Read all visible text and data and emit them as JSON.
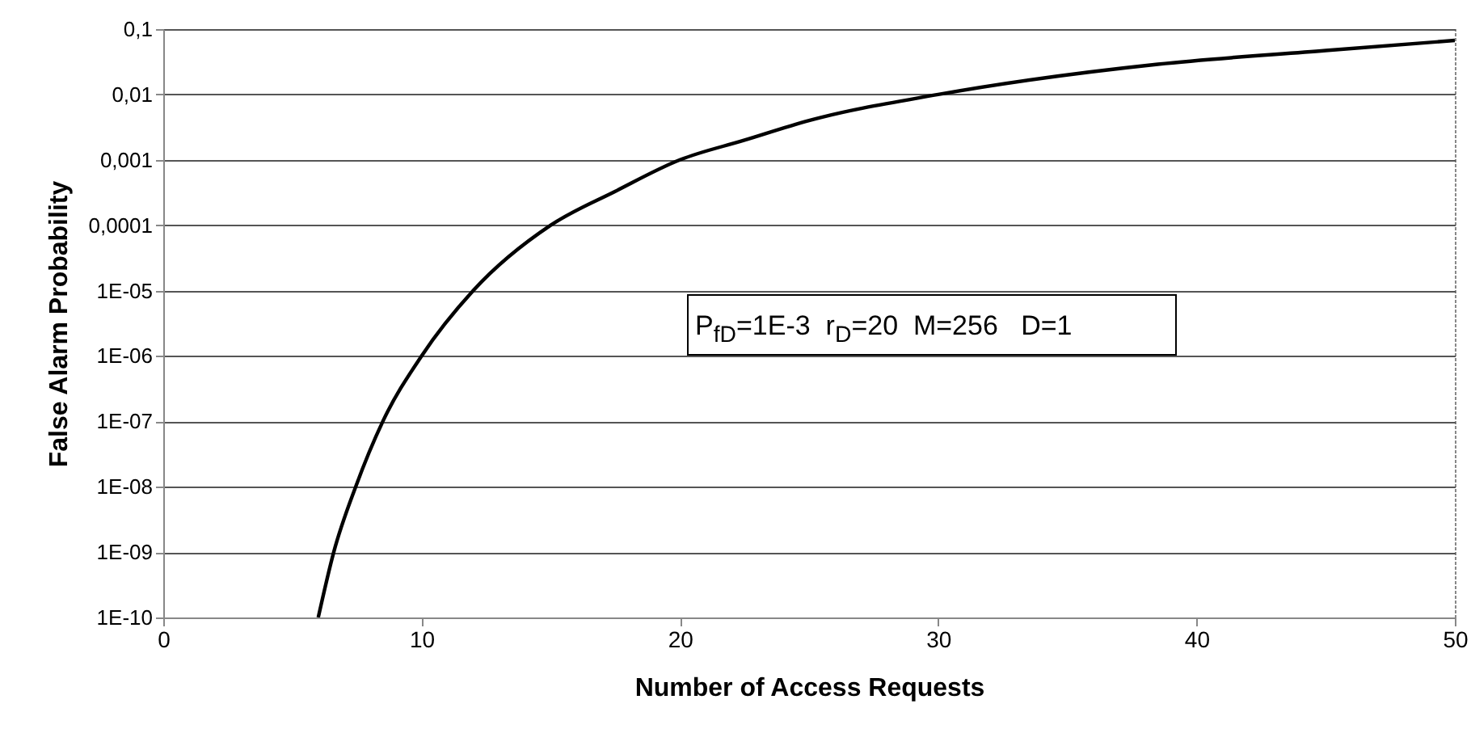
{
  "chart_data": {
    "type": "line",
    "xlabel": "Number of Access Requests",
    "ylabel": "False Alarm Probability",
    "x": [
      6,
      6.6,
      7.45,
      8.5,
      10,
      12,
      15,
      17.5,
      20,
      22.5,
      25,
      30,
      38.5,
      45,
      50
    ],
    "series": [
      {
        "color": "#000000",
        "values": [
          1e-10,
          1e-09,
          1e-08,
          1e-07,
          1e-06,
          1e-05,
          0.0001,
          0.00033,
          0.001,
          0.002,
          0.004,
          0.01,
          0.029,
          0.047,
          0.067
        ]
      }
    ],
    "xlim": [
      0,
      50
    ],
    "xticks": [
      0,
      10,
      20,
      30,
      40,
      50
    ],
    "ylim": [
      1e-10,
      0.1
    ],
    "log": true,
    "yticks": [
      {
        "value": 1e-10,
        "label": "1E-10"
      },
      {
        "value": 1e-09,
        "label": "1E-09"
      },
      {
        "value": 1e-08,
        "label": "1E-08"
      },
      {
        "value": 1e-07,
        "label": "1E-07"
      },
      {
        "value": 1e-06,
        "label": "1E-06"
      },
      {
        "value": 1e-05,
        "label": "1E-05"
      },
      {
        "value": 0.0001,
        "label": "0,0001"
      },
      {
        "value": 0.001,
        "label": "0,001"
      },
      {
        "value": 0.01,
        "label": "0,01"
      },
      {
        "value": 0.1,
        "label": "0,1"
      }
    ],
    "grid": "y",
    "marker": "none",
    "line_style": "solid",
    "annotations": [
      "P$_{fD}$=1E-3  r$_{D}$=20  M=256   D=1"
    ]
  }
}
